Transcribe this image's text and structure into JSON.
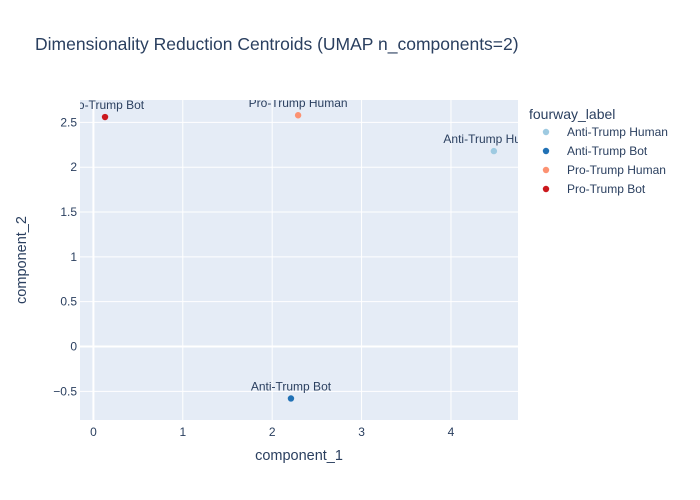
{
  "chart_data": {
    "type": "scatter",
    "title": "Dimensionality Reduction Centroids (UMAP n_components=2)",
    "xlabel": "component_1",
    "ylabel": "component_2",
    "xlim": [
      -0.15,
      4.75
    ],
    "ylim": [
      -0.82,
      2.75
    ],
    "x_ticks": [
      "0",
      "1",
      "2",
      "3",
      "4"
    ],
    "y_ticks": [
      "−0.5",
      "0",
      "0.5",
      "1",
      "1.5",
      "2",
      "2.5"
    ],
    "grid": true,
    "legend_title": "fourway_label",
    "legend_position": "right",
    "series": [
      {
        "name": "Anti-Trump Human",
        "color": "#9ecae1",
        "x": [
          4.48
        ],
        "y": [
          2.18
        ],
        "label": "Anti-Trump Human"
      },
      {
        "name": "Anti-Trump Bot",
        "color": "#2171b5",
        "x": [
          2.21
        ],
        "y": [
          -0.58
        ],
        "label": "Anti-Trump Bot"
      },
      {
        "name": "Pro-Trump Human",
        "color": "#fc9272",
        "x": [
          2.29
        ],
        "y": [
          2.58
        ],
        "label": "Pro-Trump Human"
      },
      {
        "name": "Pro-Trump Bot",
        "color": "#cb181d",
        "x": [
          0.13
        ],
        "y": [
          2.56
        ],
        "label": "Pro-Trump Bot"
      }
    ]
  }
}
